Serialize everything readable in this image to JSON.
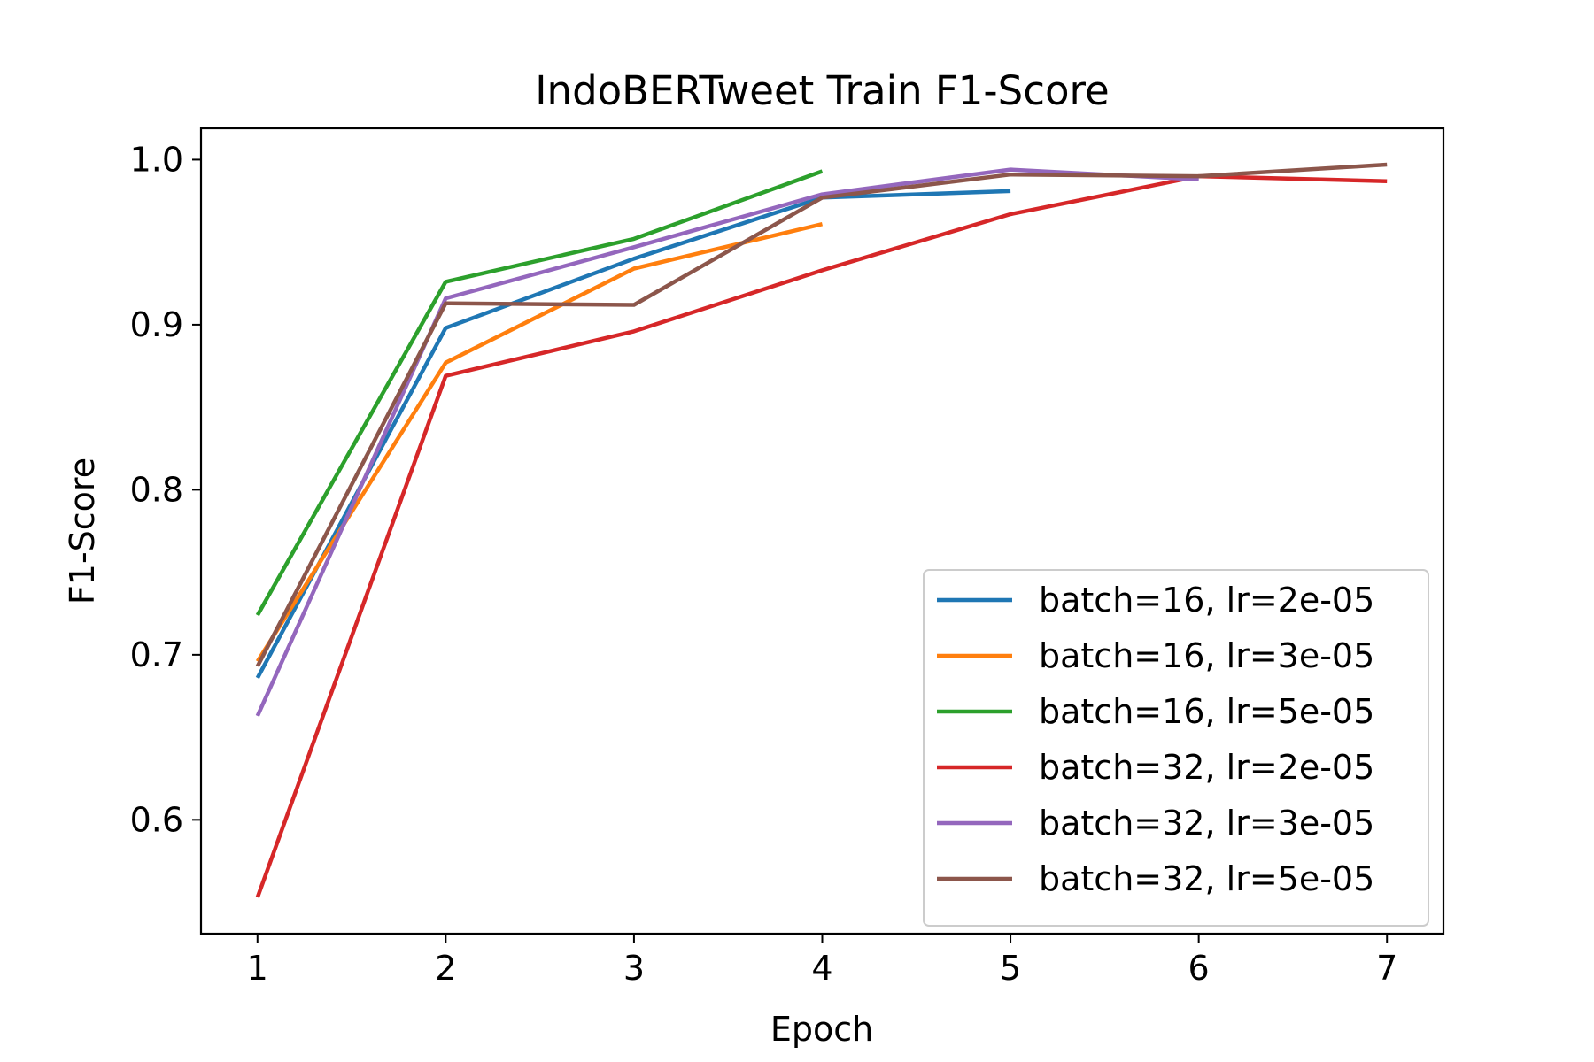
{
  "chart_data": {
    "type": "line",
    "title": "IndoBERTweet Train F1-Score",
    "xlabel": "Epoch",
    "ylabel": "F1-Score",
    "xlim": [
      0.7,
      7.3
    ],
    "ylim": [
      0.531,
      1.019
    ],
    "xticks": [
      1,
      2,
      3,
      4,
      5,
      6,
      7
    ],
    "xtick_labels": [
      "1",
      "2",
      "3",
      "4",
      "5",
      "6",
      "7"
    ],
    "yticks": [
      0.6,
      0.7,
      0.8,
      0.9,
      1.0
    ],
    "ytick_labels": [
      "0.6",
      "0.7",
      "0.8",
      "0.9",
      "1.0"
    ],
    "grid": false,
    "legend_position": "lower-right",
    "series": [
      {
        "name": "batch=16, lr=2e-05",
        "color": "#1f77b4",
        "x": [
          1,
          2,
          3,
          4,
          5
        ],
        "y": [
          0.686,
          0.898,
          0.94,
          0.977,
          0.981
        ]
      },
      {
        "name": "batch=16, lr=3e-05",
        "color": "#ff7f0e",
        "x": [
          1,
          2,
          3,
          4
        ],
        "y": [
          0.696,
          0.877,
          0.934,
          0.961
        ]
      },
      {
        "name": "batch=16, lr=5e-05",
        "color": "#2ca02c",
        "x": [
          1,
          2,
          3,
          4
        ],
        "y": [
          0.724,
          0.926,
          0.952,
          0.993
        ]
      },
      {
        "name": "batch=32, lr=2e-05",
        "color": "#d62728",
        "x": [
          1,
          2,
          3,
          4,
          5,
          6,
          7
        ],
        "y": [
          0.553,
          0.869,
          0.896,
          0.933,
          0.967,
          0.99,
          0.987
        ]
      },
      {
        "name": "batch=32, lr=3e-05",
        "color": "#9467bd",
        "x": [
          1,
          2,
          3,
          4,
          5,
          6
        ],
        "y": [
          0.663,
          0.916,
          0.947,
          0.979,
          0.994,
          0.988
        ]
      },
      {
        "name": "batch=32, lr=5e-05",
        "color": "#8c564b",
        "x": [
          1,
          2,
          3,
          4,
          5,
          6,
          7
        ],
        "y": [
          0.693,
          0.913,
          0.912,
          0.977,
          0.991,
          0.99,
          0.997
        ]
      }
    ]
  }
}
